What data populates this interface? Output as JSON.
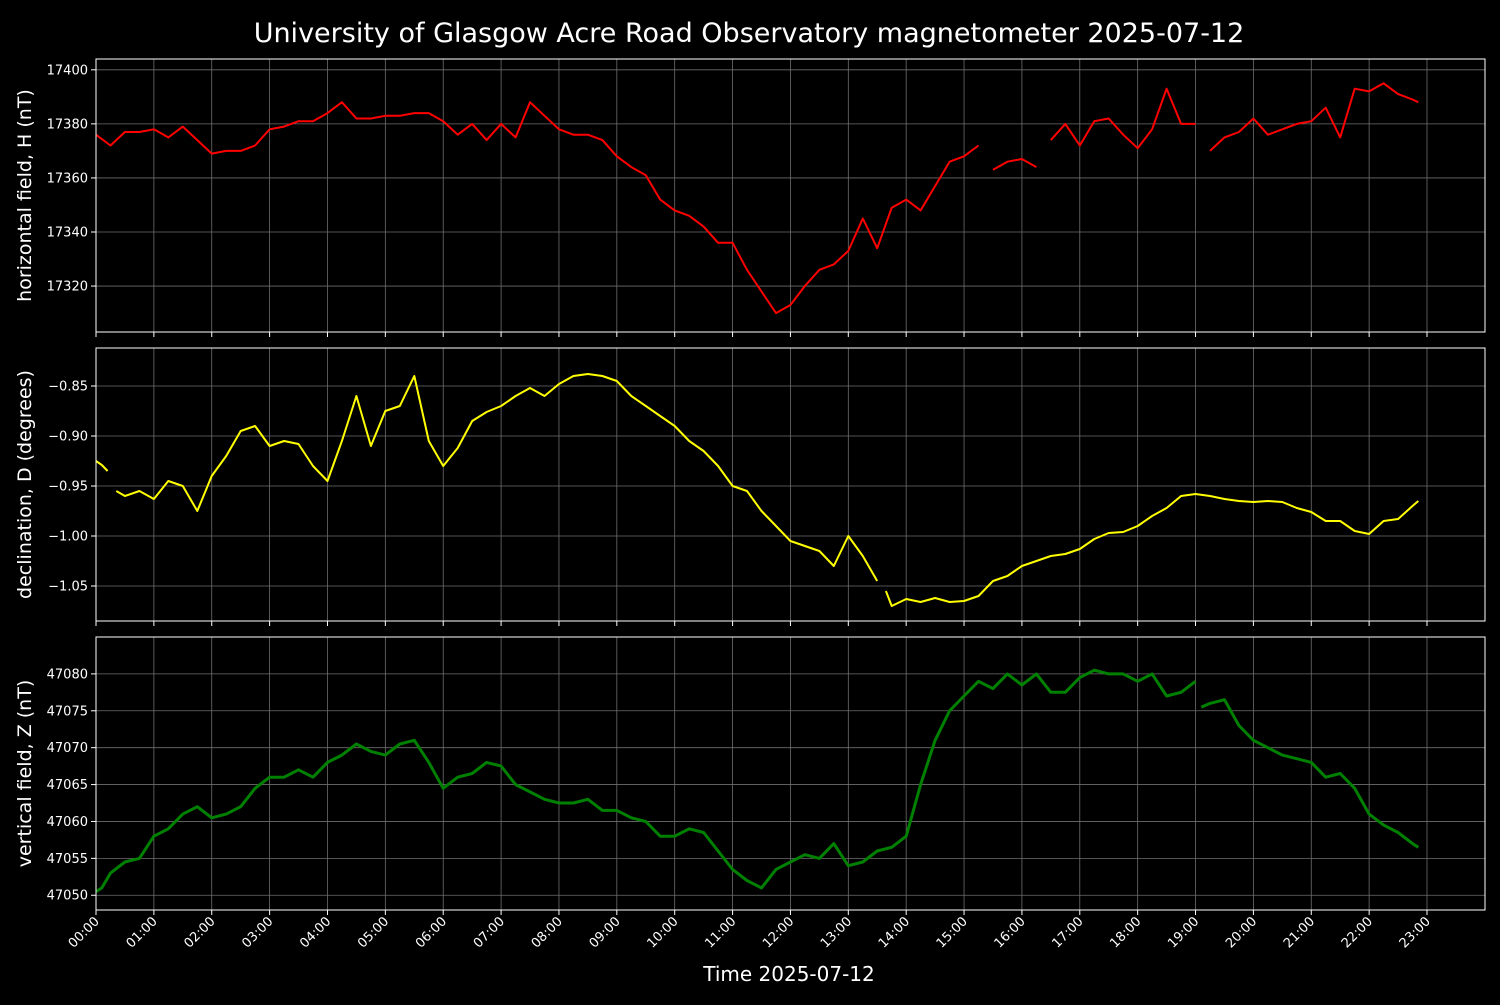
{
  "chart_data": {
    "type": "line",
    "title": "University of Glasgow Acre Road Observatory magnetometer 2025-07-12",
    "xlabel": "Time 2025-07-12",
    "x_ticks": [
      "00:00",
      "01:00",
      "02:00",
      "03:00",
      "04:00",
      "05:00",
      "06:00",
      "07:00",
      "08:00",
      "09:00",
      "10:00",
      "11:00",
      "12:00",
      "13:00",
      "14:00",
      "15:00",
      "16:00",
      "17:00",
      "18:00",
      "19:00",
      "20:00",
      "21:00",
      "22:00",
      "23:00"
    ],
    "xlim_hours": [
      0,
      24
    ],
    "grid": true,
    "panels": [
      {
        "ylabel": "horizontal field, H (nT)",
        "color": "#ff0000",
        "ylim": [
          17303,
          17404
        ],
        "y_ticks": [
          17320,
          17340,
          17360,
          17380,
          17400
        ],
        "y_tick_labels": [
          "17320",
          "17340",
          "17360",
          "17380",
          "17400"
        ],
        "series": [
          {
            "x": [
              0.0,
              0.25,
              0.5,
              0.75,
              1.0,
              1.25,
              1.5,
              1.75,
              2.0,
              2.25,
              2.5,
              2.75,
              3.0,
              3.25,
              3.5,
              3.75,
              4.0,
              4.25,
              4.5,
              4.75,
              5.0,
              5.25,
              5.5,
              5.75,
              6.0,
              6.25,
              6.5,
              6.75,
              7.0,
              7.25,
              7.5,
              7.75,
              8.0,
              8.25,
              8.5,
              8.75,
              9.0,
              9.25,
              9.5,
              9.75,
              10.0,
              10.25,
              10.5,
              10.75,
              11.0,
              11.25,
              11.5,
              11.75,
              12.0,
              12.25,
              12.5,
              12.75,
              13.0,
              13.25,
              13.5,
              13.75,
              14.0,
              14.25,
              14.5,
              14.75,
              15.0,
              15.25
            ],
            "y": [
              17376,
              17372,
              17377,
              17377,
              17378,
              17375,
              17379,
              17374,
              17369,
              17370,
              17370,
              17372,
              17378,
              17379,
              17381,
              17381,
              17384,
              17388,
              17382,
              17382,
              17383,
              17383,
              17384,
              17384,
              17381,
              17376,
              17380,
              17374,
              17380,
              17375,
              17388,
              17383,
              17378,
              17376,
              17376,
              17374,
              17368,
              17364,
              17361,
              17352,
              17348,
              17346,
              17342,
              17336,
              17336,
              17326,
              17318,
              17310,
              17313,
              17320,
              17326,
              17328,
              17333,
              17345,
              17334,
              17349,
              17352,
              17348,
              17357,
              17366,
              17368,
              17372
            ]
          },
          {
            "x": [
              15.5,
              15.75,
              16.0,
              16.25
            ],
            "y": [
              17363,
              17366,
              17367,
              17364
            ]
          },
          {
            "x": [
              16.5,
              16.75,
              17.0,
              17.25,
              17.5,
              17.75,
              18.0,
              18.25,
              18.5,
              18.75,
              19.0
            ],
            "y": [
              17374,
              17380,
              17372,
              17381,
              17382,
              17376,
              17371,
              17378,
              17393,
              17380,
              17380
            ]
          },
          {
            "x": [
              19.25,
              19.5,
              19.75,
              20.0,
              20.25,
              20.5,
              20.75,
              21.0,
              21.25,
              21.5,
              21.75,
              22.0,
              22.25,
              22.5,
              22.75,
              22.85
            ],
            "y": [
              17370,
              17375,
              17377,
              17382,
              17376,
              17378,
              17380,
              17381,
              17386,
              17375,
              17393,
              17392,
              17395,
              17391,
              17389,
              17388
            ]
          }
        ]
      },
      {
        "ylabel": "declination, D (degrees)",
        "color": "#ffff00",
        "ylim": [
          -1.085,
          -0.812
        ],
        "y_ticks": [
          -1.05,
          -1.0,
          -0.95,
          -0.9,
          -0.85
        ],
        "y_tick_labels": [
          "−1.05",
          "−1.00",
          "−0.95",
          "−0.90",
          "−0.85"
        ],
        "series": [
          {
            "x": [
              0.0,
              0.1,
              0.2
            ],
            "y": [
              -0.925,
              -0.929,
              -0.935
            ]
          },
          {
            "x": [
              0.35,
              0.5,
              0.75,
              1.0,
              1.25,
              1.5,
              1.75,
              2.0,
              2.25,
              2.5,
              2.75,
              3.0,
              3.25,
              3.5,
              3.75,
              4.0,
              4.25,
              4.5,
              4.75,
              5.0,
              5.25,
              5.5,
              5.75,
              6.0,
              6.25,
              6.5,
              6.75,
              7.0,
              7.25,
              7.5,
              7.75,
              8.0,
              8.25,
              8.5,
              8.75,
              9.0,
              9.25,
              9.5,
              9.75,
              10.0,
              10.25,
              10.5,
              10.75,
              11.0,
              11.25,
              11.5,
              11.75,
              12.0,
              12.25,
              12.5,
              12.75,
              13.0,
              13.25,
              13.5
            ],
            "y": [
              -0.955,
              -0.96,
              -0.955,
              -0.963,
              -0.945,
              -0.95,
              -0.975,
              -0.94,
              -0.92,
              -0.895,
              -0.89,
              -0.91,
              -0.905,
              -0.908,
              -0.93,
              -0.945,
              -0.905,
              -0.86,
              -0.91,
              -0.875,
              -0.87,
              -0.84,
              -0.905,
              -0.93,
              -0.912,
              -0.885,
              -0.876,
              -0.87,
              -0.86,
              -0.852,
              -0.86,
              -0.848,
              -0.84,
              -0.838,
              -0.84,
              -0.845,
              -0.86,
              -0.87,
              -0.88,
              -0.89,
              -0.905,
              -0.915,
              -0.93,
              -0.95,
              -0.955,
              -0.975,
              -0.99,
              -1.005,
              -1.01,
              -1.015,
              -1.03,
              -1.0,
              -1.02,
              -1.045
            ]
          },
          {
            "x": [
              13.65,
              13.75,
              14.0,
              14.25,
              14.5,
              14.75,
              15.0,
              15.25,
              15.5,
              15.75,
              16.0,
              16.25,
              16.5,
              16.75,
              17.0,
              17.25,
              17.5,
              17.75,
              18.0,
              18.25,
              18.5,
              18.75,
              19.0,
              19.25,
              19.5,
              19.75,
              20.0,
              20.25,
              20.5,
              20.75,
              21.0,
              21.25,
              21.5,
              21.75,
              22.0,
              22.25,
              22.5,
              22.75,
              22.85
            ],
            "y": [
              -1.055,
              -1.07,
              -1.063,
              -1.066,
              -1.062,
              -1.066,
              -1.065,
              -1.06,
              -1.045,
              -1.04,
              -1.03,
              -1.025,
              -1.02,
              -1.018,
              -1.013,
              -1.003,
              -0.997,
              -0.996,
              -0.99,
              -0.98,
              -0.972,
              -0.96,
              -0.958,
              -0.96,
              -0.963,
              -0.965,
              -0.966,
              -0.965,
              -0.966,
              -0.972,
              -0.976,
              -0.985,
              -0.985,
              -0.995,
              -0.998,
              -0.985,
              -0.983,
              -0.97,
              -0.965
            ]
          }
        ]
      },
      {
        "ylabel": "vertical field, Z (nT)",
        "color": "#008000",
        "ylim": [
          47048,
          47085
        ],
        "y_ticks": [
          47050,
          47055,
          47060,
          47065,
          47070,
          47075,
          47080
        ],
        "y_tick_labels": [
          "47050",
          "47055",
          "47060",
          "47065",
          "47070",
          "47075",
          "47080"
        ],
        "series": [
          {
            "x": [
              0.0,
              0.1,
              0.25,
              0.5,
              0.75,
              1.0,
              1.25,
              1.5,
              1.75,
              2.0,
              2.25,
              2.5,
              2.75,
              3.0,
              3.25,
              3.5,
              3.75,
              4.0,
              4.25,
              4.5,
              4.75,
              5.0,
              5.25,
              5.5,
              5.75,
              6.0,
              6.25,
              6.5,
              6.75,
              7.0,
              7.25,
              7.5,
              7.75,
              8.0,
              8.25,
              8.5,
              8.75,
              9.0,
              9.25,
              9.5,
              9.75,
              10.0,
              10.25,
              10.5,
              10.75,
              11.0,
              11.25,
              11.5,
              11.75,
              12.0,
              12.25,
              12.5,
              12.75,
              13.0,
              13.25,
              13.5,
              13.75,
              14.0,
              14.25,
              14.5,
              14.75,
              15.0,
              15.25,
              15.5,
              15.75,
              16.0,
              16.25,
              16.5,
              16.75,
              17.0,
              17.25,
              17.5,
              17.75,
              18.0,
              18.25,
              18.5,
              18.75,
              19.0
            ],
            "y": [
              47050.5,
              47051,
              47053,
              47054.5,
              47055,
              47058,
              47059,
              47061,
              47062,
              47060.5,
              47061,
              47062,
              47064.5,
              47066,
              47066,
              47067,
              47066,
              47068,
              47069,
              47070.5,
              47069.5,
              47069,
              47070.5,
              47071,
              47068,
              47064.5,
              47066,
              47066.5,
              47068,
              47067.5,
              47065,
              47064,
              47063,
              47062.5,
              47062.5,
              47063,
              47061.5,
              47061.5,
              47060.5,
              47060,
              47058,
              47058,
              47059,
              47058.5,
              47056,
              47053.5,
              47052,
              47051,
              47053.5,
              47054.5,
              47055.5,
              47055,
              47057,
              47054,
              47054.5,
              47056,
              47056.5,
              47058,
              47065,
              47071,
              47075,
              47077,
              47079,
              47078,
              47080,
              47078.5,
              47080,
              47077.5,
              47077.5,
              47079.5,
              47080.5,
              47080,
              47080,
              47079,
              47080,
              47077,
              47077.5,
              47079
            ]
          },
          {
            "x": [
              19.1,
              19.25,
              19.5,
              19.75,
              20.0,
              20.25,
              20.5,
              20.75,
              21.0,
              21.25,
              21.5,
              21.75,
              22.0,
              22.25,
              22.5,
              22.75,
              22.85
            ],
            "y": [
              47075.5,
              47076,
              47076.5,
              47073,
              47071,
              47070,
              47069,
              47068.5,
              47068,
              47066,
              47066.5,
              47064.5,
              47061,
              47059.5,
              47058.5,
              47057,
              47056.5
            ]
          }
        ]
      }
    ]
  }
}
